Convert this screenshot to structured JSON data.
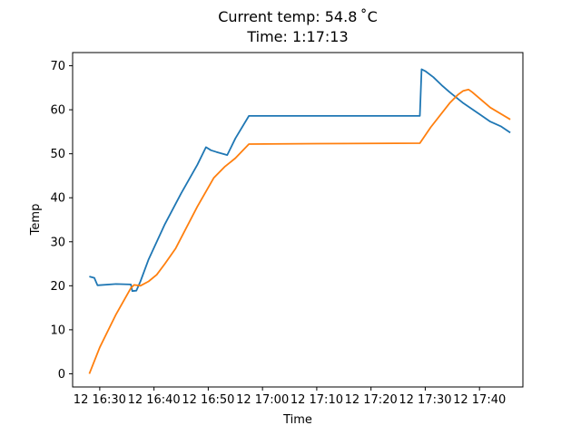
{
  "title": {
    "line1": "Current temp: 54.8 ˚C",
    "line2": "Time: 1:17:13"
  },
  "chart_data": {
    "type": "line",
    "title": "Current temp: 54.8 ˚C / Time: 1:17:13",
    "xlabel": "Time",
    "ylabel": "Temp",
    "xlim": [
      "16:25:00",
      "17:48:00"
    ],
    "ylim": [
      -3,
      73
    ],
    "x_ticks": [
      {
        "time": "16:30",
        "label": "12 16:30"
      },
      {
        "time": "16:40",
        "label": "12 16:40"
      },
      {
        "time": "16:50",
        "label": "12 16:50"
      },
      {
        "time": "17:00",
        "label": "12 17:00"
      },
      {
        "time": "17:10",
        "label": "12 17:10"
      },
      {
        "time": "17:20",
        "label": "12 17:20"
      },
      {
        "time": "17:30",
        "label": "12 17:30"
      },
      {
        "time": "17:40",
        "label": "12 17:40"
      }
    ],
    "y_ticks": [
      0,
      10,
      20,
      30,
      40,
      50,
      60,
      70
    ],
    "grid": false,
    "series": [
      {
        "color": "#1f77b4",
        "points": [
          [
            "16:28:05",
            22.1
          ],
          [
            "16:29:00",
            21.8
          ],
          [
            "16:29:35",
            20.1
          ],
          [
            "16:33:00",
            20.4
          ],
          [
            "16:35:45",
            20.3
          ],
          [
            "16:36:00",
            18.8
          ],
          [
            "16:36:45",
            18.9
          ],
          [
            "16:37:30",
            21.0
          ],
          [
            "16:39:00",
            26.0
          ],
          [
            "16:42:00",
            34.0
          ],
          [
            "16:45:00",
            41.0
          ],
          [
            "16:48:00",
            47.5
          ],
          [
            "16:49:35",
            51.5
          ],
          [
            "16:50:30",
            50.8
          ],
          [
            "16:51:30",
            50.4
          ],
          [
            "16:53:00",
            49.9
          ],
          [
            "16:53:30",
            49.7
          ],
          [
            "16:55:00",
            53.5
          ],
          [
            "16:57:30",
            58.6
          ],
          [
            "17:29:00",
            58.6
          ],
          [
            "17:29:20",
            69.2
          ],
          [
            "17:30:00",
            68.8
          ],
          [
            "17:31:30",
            67.4
          ],
          [
            "17:33:00",
            65.6
          ],
          [
            "17:34:30",
            64.0
          ],
          [
            "17:37:00",
            61.5
          ],
          [
            "17:40:00",
            59.0
          ],
          [
            "17:42:00",
            57.3
          ],
          [
            "17:44:00",
            56.2
          ],
          [
            "17:45:40",
            54.8
          ]
        ]
      },
      {
        "color": "#ff7f0e",
        "points": [
          [
            "16:28:05",
            0.0
          ],
          [
            "16:30:00",
            6.0
          ],
          [
            "16:33:00",
            13.5
          ],
          [
            "16:35:45",
            19.5
          ],
          [
            "16:36:20",
            20.2
          ],
          [
            "16:37:30",
            20.0
          ],
          [
            "16:39:00",
            21.0
          ],
          [
            "16:40:30",
            22.5
          ],
          [
            "16:42:00",
            25.0
          ],
          [
            "16:44:00",
            28.5
          ],
          [
            "16:48:00",
            38.0
          ],
          [
            "16:51:00",
            44.5
          ],
          [
            "16:53:00",
            47.0
          ],
          [
            "16:55:00",
            49.0
          ],
          [
            "16:57:30",
            52.2
          ],
          [
            "17:10:00",
            52.3
          ],
          [
            "17:29:00",
            52.4
          ],
          [
            "17:31:00",
            56.0
          ],
          [
            "17:34:30",
            61.5
          ],
          [
            "17:36:00",
            63.4
          ],
          [
            "17:37:00",
            64.3
          ],
          [
            "17:38:00",
            64.6
          ],
          [
            "17:38:40",
            64.0
          ],
          [
            "17:42:00",
            60.5
          ],
          [
            "17:45:40",
            57.8
          ]
        ]
      }
    ]
  }
}
